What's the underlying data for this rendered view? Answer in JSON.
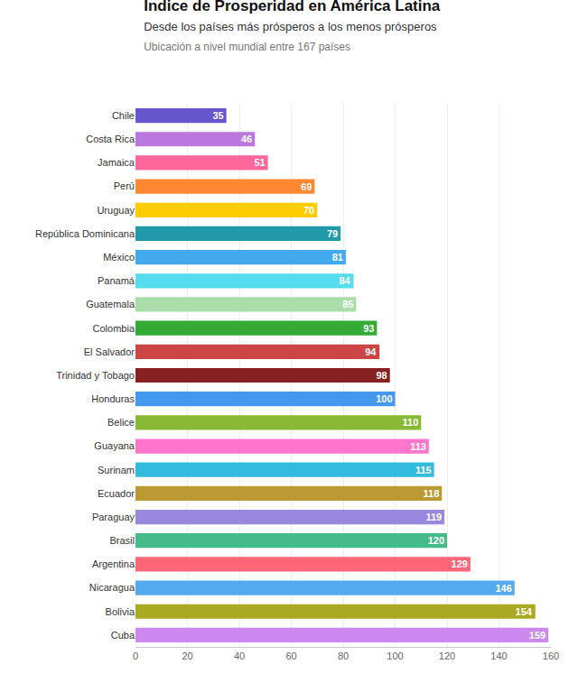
{
  "chart_data": {
    "type": "bar",
    "orientation": "horizontal",
    "title": "Índice de Prosperidad en América Latina",
    "subtitle": "Desde los países más prósperos a los menos prósperos",
    "annotations": [
      "Ubicación a nivel mundial entre 167 países"
    ],
    "categories": [
      "Chile",
      "Costa Rica",
      "Jamaica",
      "Perú",
      "Uruguay",
      "República Dominicana",
      "México",
      "Panamá",
      "Guatemala",
      "Colombia",
      "El Salvador",
      "Trinidad y Tobago",
      "Honduras",
      "Belice",
      "Guayana",
      "Surinam",
      "Ecuador",
      "Paraguay",
      "Brasil",
      "Argentina",
      "Nicaragua",
      "Bolivia",
      "Cuba"
    ],
    "values": [
      35,
      46,
      51,
      69,
      70,
      79,
      81,
      84,
      85,
      93,
      94,
      98,
      100,
      110,
      113,
      115,
      118,
      119,
      120,
      129,
      146,
      154,
      159
    ],
    "colors": [
      "#6655cc",
      "#bb77dd",
      "#ff6699",
      "#ff8833",
      "#ffcc00",
      "#2299aa",
      "#44aaee",
      "#55ddee",
      "#aaddaa",
      "#33aa33",
      "#cc4444",
      "#882222",
      "#4499ee",
      "#88bb33",
      "#ff77cc",
      "#33bbdd",
      "#bb9933",
      "#9988dd",
      "#44bb88",
      "#ff6677",
      "#55aaee",
      "#aaaa22",
      "#cc88ee"
    ],
    "xlim": [
      0,
      160
    ],
    "xticks": [
      0,
      20,
      40,
      60,
      80,
      100,
      120,
      140,
      160
    ],
    "grid": true,
    "data_labels": true
  }
}
